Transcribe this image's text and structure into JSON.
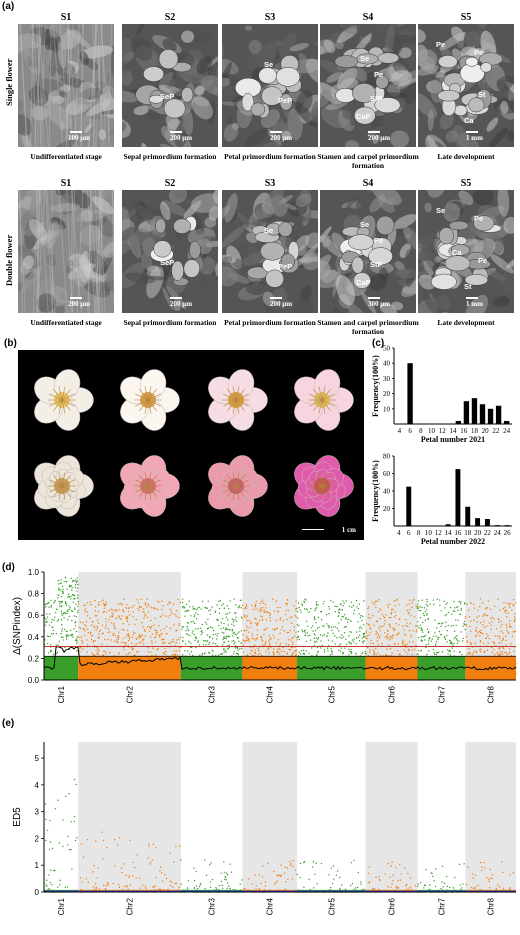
{
  "panel_a": {
    "label": "(a)",
    "stages": [
      "S1",
      "S2",
      "S3",
      "S4",
      "S5"
    ],
    "single_row_label": "Single flower",
    "double_row_label": "Double flower",
    "captions": [
      "Undifferentiated stage",
      "Sepal primordium formation",
      "Petal primordium formation",
      "Stamen and carpel primordium formation",
      "Late development"
    ],
    "single_scale": [
      "100 μm",
      "200 μm",
      "200 μm",
      "200 μm",
      "1 mm"
    ],
    "double_scale": [
      "200 μm",
      "200 μm",
      "200 μm",
      "300 μm",
      "1 mm"
    ],
    "single_labels": {
      "s2": [
        "SeP"
      ],
      "s3": [
        "Se",
        "PeP"
      ],
      "s4": [
        "Se",
        "Pe",
        "StP",
        "CaP"
      ],
      "s5": [
        "Pe",
        "Pe",
        "St",
        "Ca"
      ]
    },
    "double_labels": {
      "s2": [
        "SeP"
      ],
      "s3": [
        "Se",
        "PeP"
      ],
      "s4": [
        "Se",
        "Pe",
        "StP",
        "CaP"
      ],
      "s5": [
        "Se",
        "Pe",
        "Pe",
        "St",
        "Ca"
      ]
    }
  },
  "panel_b": {
    "label": "(b)",
    "scale": "1 cm"
  },
  "panel_c": {
    "label": "(c)",
    "chart_data": [
      {
        "type": "bar",
        "xlabel": "Petal number 2021",
        "ylabel": "Frequency(100%)",
        "x_ticks": [
          4,
          6,
          8,
          10,
          12,
          14,
          16,
          18,
          20,
          22,
          24
        ],
        "ylim": [
          0,
          50
        ],
        "y_ticks": [
          10,
          20,
          30,
          40,
          50
        ],
        "categories": [
          6,
          15,
          16,
          17,
          18,
          19,
          20,
          21,
          22,
          23,
          24
        ],
        "values": [
          40,
          2,
          15,
          17,
          13,
          10,
          12,
          2,
          0,
          0,
          0
        ],
        "bars": [
          [
            6,
            40
          ],
          [
            15,
            2
          ],
          [
            16.5,
            15
          ],
          [
            18,
            17
          ],
          [
            19.5,
            13
          ],
          [
            21,
            10
          ],
          [
            22.5,
            12
          ],
          [
            24,
            2
          ]
        ]
      },
      {
        "type": "bar",
        "xlabel": "Petal number 2022",
        "ylabel": "Frequency(100%)",
        "x_ticks": [
          4,
          6,
          8,
          10,
          12,
          14,
          16,
          18,
          20,
          22,
          24,
          26
        ],
        "ylim": [
          0,
          80
        ],
        "y_ticks": [
          20,
          40,
          60,
          80
        ],
        "bars": [
          [
            6,
            45
          ],
          [
            14,
            2
          ],
          [
            16,
            65
          ],
          [
            18,
            22
          ],
          [
            20,
            9
          ],
          [
            22,
            8
          ],
          [
            24,
            1
          ],
          [
            26,
            1
          ]
        ]
      }
    ]
  },
  "panel_d": {
    "label": "(d)",
    "chart_data": {
      "type": "scatter",
      "ylabel": "Δ(SNPindex)",
      "ylim": [
        0,
        1.0
      ],
      "y_ticks": [
        "0.0",
        "0.2",
        "0.4",
        "0.6",
        "0.8",
        "1.0"
      ],
      "categories": [
        "Chr1",
        "Chr2",
        "Chr3",
        "Chr4",
        "Chr5",
        "Chr6",
        "Chr7",
        "Chr8"
      ],
      "threshold_upper": 0.31,
      "threshold_lower": 0.22,
      "colors": {
        "green": "#3a9e2a",
        "orange": "#f07f10",
        "line": "#000000",
        "threshold": "#c0392b"
      }
    }
  },
  "panel_e": {
    "label": "(e)",
    "chart_data": {
      "type": "scatter",
      "ylabel": "ED5",
      "ylim": [
        0,
        5.6
      ],
      "y_ticks": [
        "0",
        "1",
        "2",
        "3",
        "4",
        "5"
      ],
      "categories": [
        "Chr1",
        "Chr2",
        "Chr3",
        "Chr4",
        "Chr5",
        "Chr6",
        "Chr7",
        "Chr8"
      ]
    }
  }
}
